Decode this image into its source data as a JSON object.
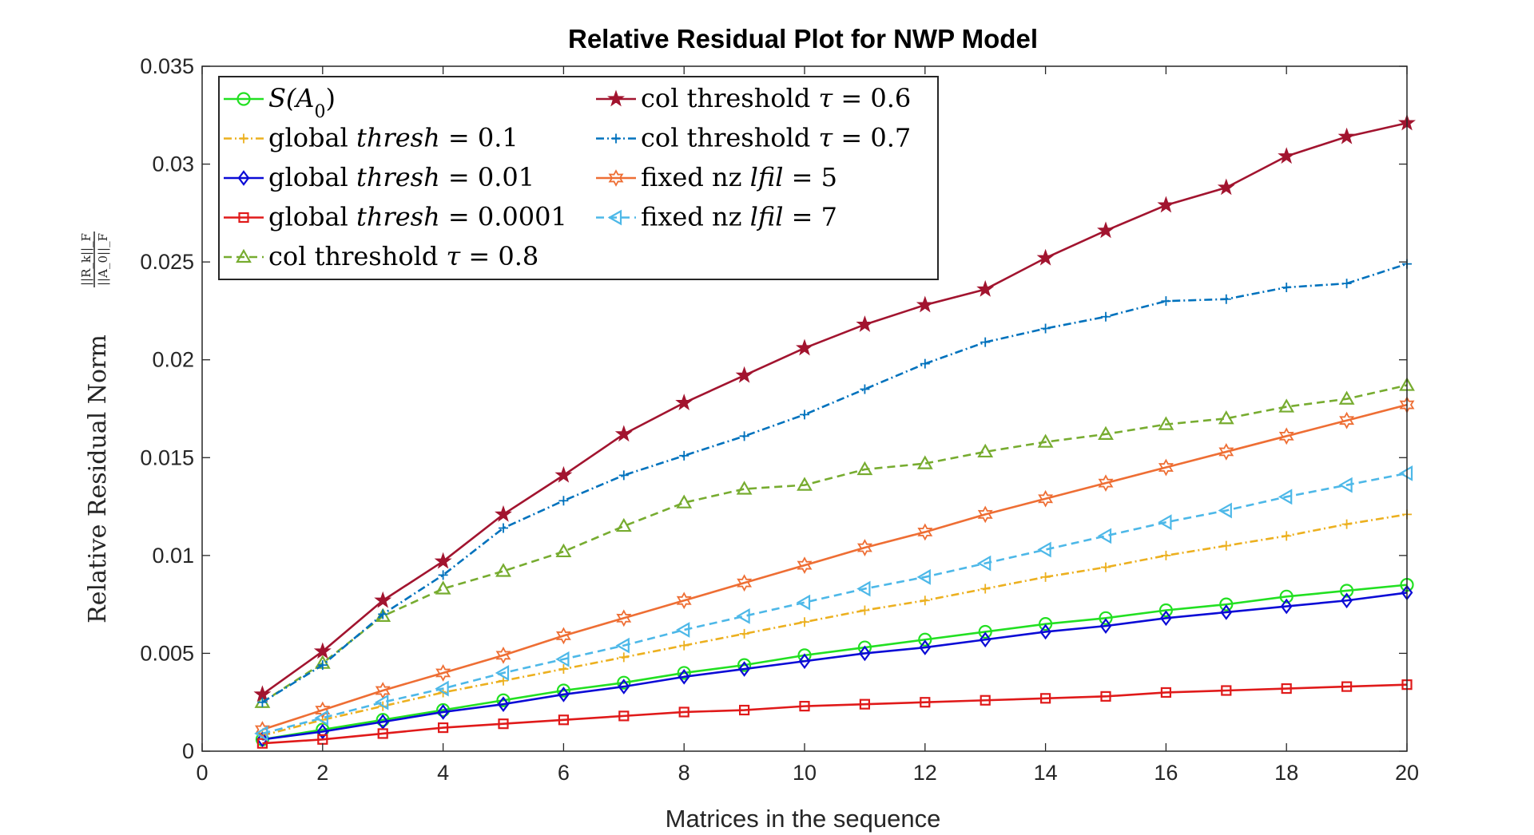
{
  "chart_data": {
    "type": "line",
    "title": "Relative Residual Plot for NWP Model",
    "xlabel": "Matrices in the sequence",
    "ylabel": "Relative Residual Norm",
    "ylabel_fraction": {
      "numerator": "||R_k||_F",
      "denominator": "||A_0||_F"
    },
    "xlim": [
      0,
      20
    ],
    "ylim": [
      0,
      0.035
    ],
    "x_ticks": [
      0,
      2,
      4,
      6,
      8,
      10,
      12,
      14,
      16,
      18,
      20
    ],
    "x_tick_labels": [
      "0",
      "2",
      "4",
      "6",
      "8",
      "10",
      "12",
      "14",
      "16",
      "18",
      "20"
    ],
    "y_ticks": [
      0,
      0.005,
      0.01,
      0.015,
      0.02,
      0.025,
      0.03,
      0.035
    ],
    "y_tick_labels": [
      "0",
      "0.005",
      "0.01",
      "0.015",
      "0.02",
      "0.025",
      "0.03",
      "0.035"
    ],
    "grid": false,
    "legend_position": "top-left",
    "x": [
      1,
      2,
      3,
      4,
      5,
      6,
      7,
      8,
      9,
      10,
      11,
      12,
      13,
      14,
      15,
      16,
      17,
      18,
      19,
      20
    ],
    "series": [
      {
        "name": "S(A_0)",
        "label_pre": "",
        "label_math": "S(A",
        "label_sub": "0",
        "label_post": ")",
        "color": "#22e022",
        "marker": "circle",
        "dash": "solid",
        "values": [
          0.0006,
          0.0011,
          0.0016,
          0.0021,
          0.0026,
          0.0031,
          0.0035,
          0.004,
          0.0044,
          0.0049,
          0.0053,
          0.0057,
          0.0061,
          0.0065,
          0.0068,
          0.0072,
          0.0075,
          0.0079,
          0.0082,
          0.0085
        ]
      },
      {
        "name": "global thresh = 0.1",
        "label_pre": "global ",
        "label_math": "thresh",
        "label_sub": "",
        "label_post": " = 0.1",
        "color": "#ecb01f",
        "marker": "plus",
        "dash": "dashdot",
        "values": [
          0.0008,
          0.0016,
          0.0023,
          0.003,
          0.0036,
          0.0042,
          0.0048,
          0.0054,
          0.006,
          0.0066,
          0.0072,
          0.0077,
          0.0083,
          0.0089,
          0.0094,
          0.01,
          0.0105,
          0.011,
          0.0116,
          0.0121
        ]
      },
      {
        "name": "global thresh = 0.01",
        "label_pre": "global ",
        "label_math": "thresh",
        "label_sub": "",
        "label_post": " = 0.01",
        "color": "#0b0bd6",
        "marker": "diamond",
        "dash": "solid",
        "values": [
          0.0006,
          0.001,
          0.0015,
          0.002,
          0.0024,
          0.0029,
          0.0033,
          0.0038,
          0.0042,
          0.0046,
          0.005,
          0.0053,
          0.0057,
          0.0061,
          0.0064,
          0.0068,
          0.0071,
          0.0074,
          0.0077,
          0.0081
        ]
      },
      {
        "name": "global thresh = 0.0001",
        "label_pre": "global ",
        "label_math": "thresh",
        "label_sub": "",
        "label_post": " = 0.0001",
        "color": "#e01a1a",
        "marker": "square",
        "dash": "solid",
        "values": [
          0.0004,
          0.0006,
          0.0009,
          0.0012,
          0.0014,
          0.0016,
          0.0018,
          0.002,
          0.0021,
          0.0023,
          0.0024,
          0.0025,
          0.0026,
          0.0027,
          0.0028,
          0.003,
          0.0031,
          0.0032,
          0.0033,
          0.0034
        ]
      },
      {
        "name": "col threshold τ = 0.8",
        "label_pre": "col threshold ",
        "label_math": "τ",
        "label_sub": "",
        "label_post": " = 0.8",
        "color": "#77ac30",
        "marker": "triangle-up",
        "dash": "dashed",
        "values": [
          0.0025,
          0.0045,
          0.0069,
          0.0083,
          0.0092,
          0.0102,
          0.0115,
          0.0127,
          0.0134,
          0.0136,
          0.0144,
          0.0147,
          0.0153,
          0.0158,
          0.0162,
          0.0167,
          0.017,
          0.0176,
          0.018,
          0.0187
        ]
      },
      {
        "name": "col threshold τ = 0.6",
        "label_pre": "col threshold ",
        "label_math": "τ",
        "label_sub": "",
        "label_post": " = 0.6",
        "color": "#a2142f",
        "marker": "star",
        "dash": "solid",
        "values": [
          0.0029,
          0.0051,
          0.0077,
          0.0097,
          0.0121,
          0.0141,
          0.0162,
          0.0178,
          0.0192,
          0.0206,
          0.0218,
          0.0228,
          0.0236,
          0.0252,
          0.0266,
          0.0279,
          0.0288,
          0.0304,
          0.0314,
          0.0321
        ]
      },
      {
        "name": "col threshold τ = 0.7",
        "label_pre": "col threshold ",
        "label_math": "τ",
        "label_sub": "",
        "label_post": " = 0.7",
        "color": "#0072bd",
        "marker": "plus",
        "dash": "dashdot",
        "values": [
          0.0025,
          0.0044,
          0.007,
          0.009,
          0.0114,
          0.0128,
          0.0141,
          0.0151,
          0.0161,
          0.0172,
          0.0185,
          0.0198,
          0.0209,
          0.0216,
          0.0222,
          0.023,
          0.0231,
          0.0237,
          0.0239,
          0.0249
        ]
      },
      {
        "name": "fixed nz lfil = 5",
        "label_pre": "fixed nz ",
        "label_math": "lfil",
        "label_sub": "",
        "label_post": " = 5",
        "color": "#ee6e34",
        "marker": "hexagram",
        "dash": "solid",
        "values": [
          0.0011,
          0.0021,
          0.0031,
          0.004,
          0.0049,
          0.0059,
          0.0068,
          0.0077,
          0.0086,
          0.0095,
          0.0104,
          0.0112,
          0.0121,
          0.0129,
          0.0137,
          0.0145,
          0.0153,
          0.0161,
          0.0169,
          0.0177
        ]
      },
      {
        "name": "fixed nz lfil = 7",
        "label_pre": "fixed nz ",
        "label_math": "lfil",
        "label_sub": "",
        "label_post": " = 7",
        "color": "#4db8e8",
        "marker": "triangle-left",
        "dash": "dashed",
        "values": [
          0.0009,
          0.0017,
          0.0025,
          0.0032,
          0.004,
          0.0047,
          0.0054,
          0.0062,
          0.0069,
          0.0076,
          0.0083,
          0.0089,
          0.0096,
          0.0103,
          0.011,
          0.0117,
          0.0123,
          0.013,
          0.0136,
          0.0142
        ]
      }
    ]
  }
}
